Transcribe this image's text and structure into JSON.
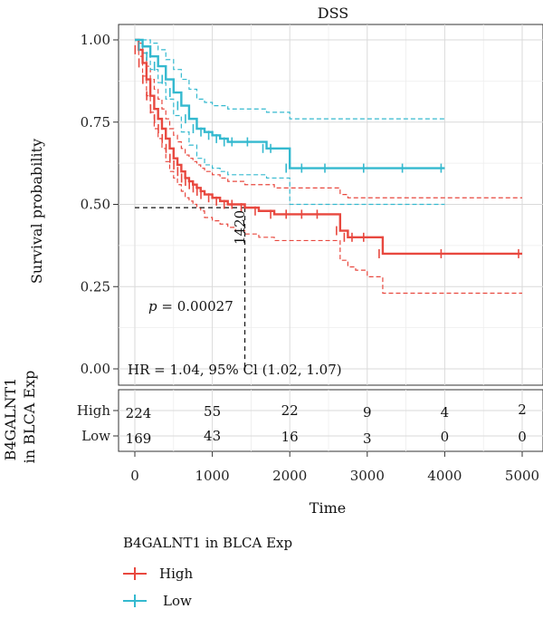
{
  "chart_data": {
    "type": "line",
    "title": "DSS",
    "xlabel": "Time",
    "ylabel": "Survival probability",
    "xlim": [
      0,
      5000
    ],
    "ylim": [
      0,
      1
    ],
    "x_ticks": [
      "0",
      "1000",
      "2000",
      "3000",
      "4000",
      "5000"
    ],
    "y_ticks": [
      "0.00",
      "0.25",
      "0.50",
      "0.75",
      "1.00"
    ],
    "grid": true,
    "p_value_label": "p",
    "p_value_text": " = 0.00027",
    "hr_text": "HR = 1.04, 95% Cl (1.02, 1.07)",
    "median_label": "1420",
    "median_time": 1420,
    "median_survival": 0.49,
    "series": [
      {
        "name": "High",
        "color": "#e8483f",
        "times": [
          0,
          50,
          100,
          150,
          200,
          250,
          300,
          350,
          400,
          450,
          500,
          550,
          600,
          650,
          700,
          750,
          800,
          850,
          900,
          1000,
          1100,
          1200,
          1300,
          1420,
          1600,
          1800,
          2000,
          2200,
          2400,
          2650,
          2750,
          2850,
          3000,
          3200,
          4000,
          5000
        ],
        "survival": [
          1.0,
          0.97,
          0.93,
          0.88,
          0.83,
          0.79,
          0.76,
          0.73,
          0.7,
          0.67,
          0.64,
          0.62,
          0.6,
          0.58,
          0.57,
          0.56,
          0.55,
          0.54,
          0.53,
          0.52,
          0.51,
          0.5,
          0.5,
          0.49,
          0.48,
          0.47,
          0.47,
          0.47,
          0.47,
          0.42,
          0.4,
          0.4,
          0.4,
          0.35,
          0.35,
          0.35
        ],
        "ci_lower": [
          1.0,
          0.95,
          0.89,
          0.83,
          0.78,
          0.73,
          0.7,
          0.67,
          0.63,
          0.6,
          0.58,
          0.56,
          0.54,
          0.52,
          0.51,
          0.5,
          0.49,
          0.48,
          0.46,
          0.45,
          0.44,
          0.43,
          0.42,
          0.41,
          0.4,
          0.39,
          0.39,
          0.39,
          0.39,
          0.33,
          0.31,
          0.3,
          0.28,
          0.23,
          0.23,
          0.23
        ],
        "ci_upper": [
          1.0,
          0.99,
          0.96,
          0.92,
          0.88,
          0.85,
          0.82,
          0.79,
          0.76,
          0.73,
          0.71,
          0.69,
          0.67,
          0.65,
          0.64,
          0.63,
          0.62,
          0.61,
          0.6,
          0.59,
          0.58,
          0.57,
          0.57,
          0.56,
          0.56,
          0.55,
          0.55,
          0.55,
          0.55,
          0.53,
          0.52,
          0.52,
          0.52,
          0.52,
          0.52,
          0.52
        ]
      },
      {
        "name": "Low",
        "color": "#34b9cf",
        "times": [
          0,
          100,
          200,
          300,
          400,
          500,
          600,
          700,
          800,
          900,
          1000,
          1100,
          1200,
          1300,
          1500,
          1700,
          1800,
          2000,
          2200,
          2500,
          3000,
          3500,
          4000
        ],
        "survival": [
          1.0,
          0.98,
          0.95,
          0.92,
          0.88,
          0.84,
          0.8,
          0.76,
          0.73,
          0.72,
          0.71,
          0.7,
          0.69,
          0.69,
          0.69,
          0.67,
          0.67,
          0.61,
          0.61,
          0.61,
          0.61,
          0.61,
          0.61
        ],
        "ci_lower": [
          1.0,
          0.96,
          0.91,
          0.87,
          0.82,
          0.77,
          0.72,
          0.68,
          0.64,
          0.62,
          0.61,
          0.6,
          0.59,
          0.59,
          0.59,
          0.58,
          0.58,
          0.5,
          0.5,
          0.5,
          0.5,
          0.5,
          0.5
        ],
        "ci_upper": [
          1.0,
          1.0,
          0.99,
          0.97,
          0.94,
          0.91,
          0.88,
          0.85,
          0.82,
          0.81,
          0.8,
          0.8,
          0.79,
          0.79,
          0.79,
          0.78,
          0.78,
          0.76,
          0.76,
          0.76,
          0.76,
          0.76,
          0.76
        ]
      }
    ],
    "risk_table": {
      "group_title": "B4GALNT1\nin BLCA Exp",
      "time_points": [
        0,
        1000,
        2000,
        3000,
        4000,
        5000
      ],
      "rows": [
        {
          "name": "High",
          "color": "#e8483f",
          "values": [
            "224",
            "55",
            "22",
            "9",
            "4",
            "2"
          ]
        },
        {
          "name": "Low",
          "color": "#34b9cf",
          "values": [
            "169",
            "43",
            "16",
            "3",
            "0",
            "0"
          ]
        }
      ]
    },
    "legend": {
      "title": "B4GALNT1 in BLCA Exp",
      "placement": "bottom-left",
      "items": [
        {
          "label": "High",
          "color": "#e8483f"
        },
        {
          "label": "Low",
          "color": "#34b9cf"
        }
      ]
    }
  }
}
